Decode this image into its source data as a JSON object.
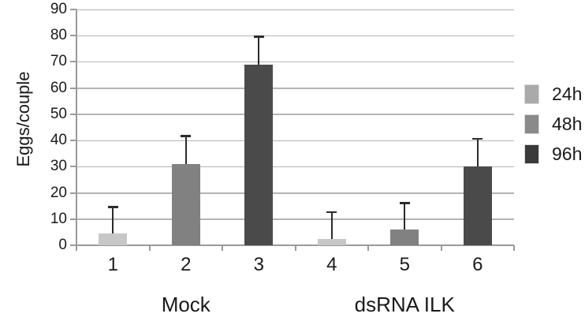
{
  "chart_data": {
    "type": "bar",
    "title": "",
    "xlabel": "",
    "ylabel": "Eggs/couple",
    "ylim": [
      0,
      90
    ],
    "yticks": [
      0,
      10,
      20,
      30,
      40,
      50,
      60,
      70,
      80,
      90
    ],
    "grid": true,
    "legend_position": "right",
    "categories": [
      "1",
      "2",
      "3",
      "4",
      "5",
      "6"
    ],
    "groups": [
      {
        "label": "Mock",
        "categories": [
          "1",
          "2",
          "3"
        ]
      },
      {
        "label": "dsRNA ILK",
        "categories": [
          "4",
          "5",
          "6"
        ]
      }
    ],
    "series_legend": [
      {
        "name": "24h",
        "color": "#aaaaaa"
      },
      {
        "name": "48h",
        "color": "#8a8a8a"
      },
      {
        "name": "96h",
        "color": "#3a3a3a"
      }
    ],
    "bars": [
      {
        "category": "1",
        "series": "24h",
        "value": 4.5,
        "error": 10.5,
        "color": "#c7c7c7"
      },
      {
        "category": "2",
        "series": "48h",
        "value": 31,
        "error": 11,
        "color": "#818181"
      },
      {
        "category": "3",
        "series": "96h",
        "value": 69,
        "error": 11,
        "color": "#4a4a4a"
      },
      {
        "category": "4",
        "series": "24h",
        "value": 2.5,
        "error": 10.5,
        "color": "#c7c7c7"
      },
      {
        "category": "5",
        "series": "48h",
        "value": 6,
        "error": 10.5,
        "color": "#818181"
      },
      {
        "category": "6",
        "series": "96h",
        "value": 30,
        "error": 11,
        "color": "#4a4a4a"
      }
    ]
  },
  "colors": {
    "background": "#ffffff",
    "grid": "#b4b4b4",
    "axis": "#9a9a9a",
    "error_bar": "#2b2b2b",
    "text": "#1a1a1a",
    "swatch_border": "#d9d9d9"
  }
}
